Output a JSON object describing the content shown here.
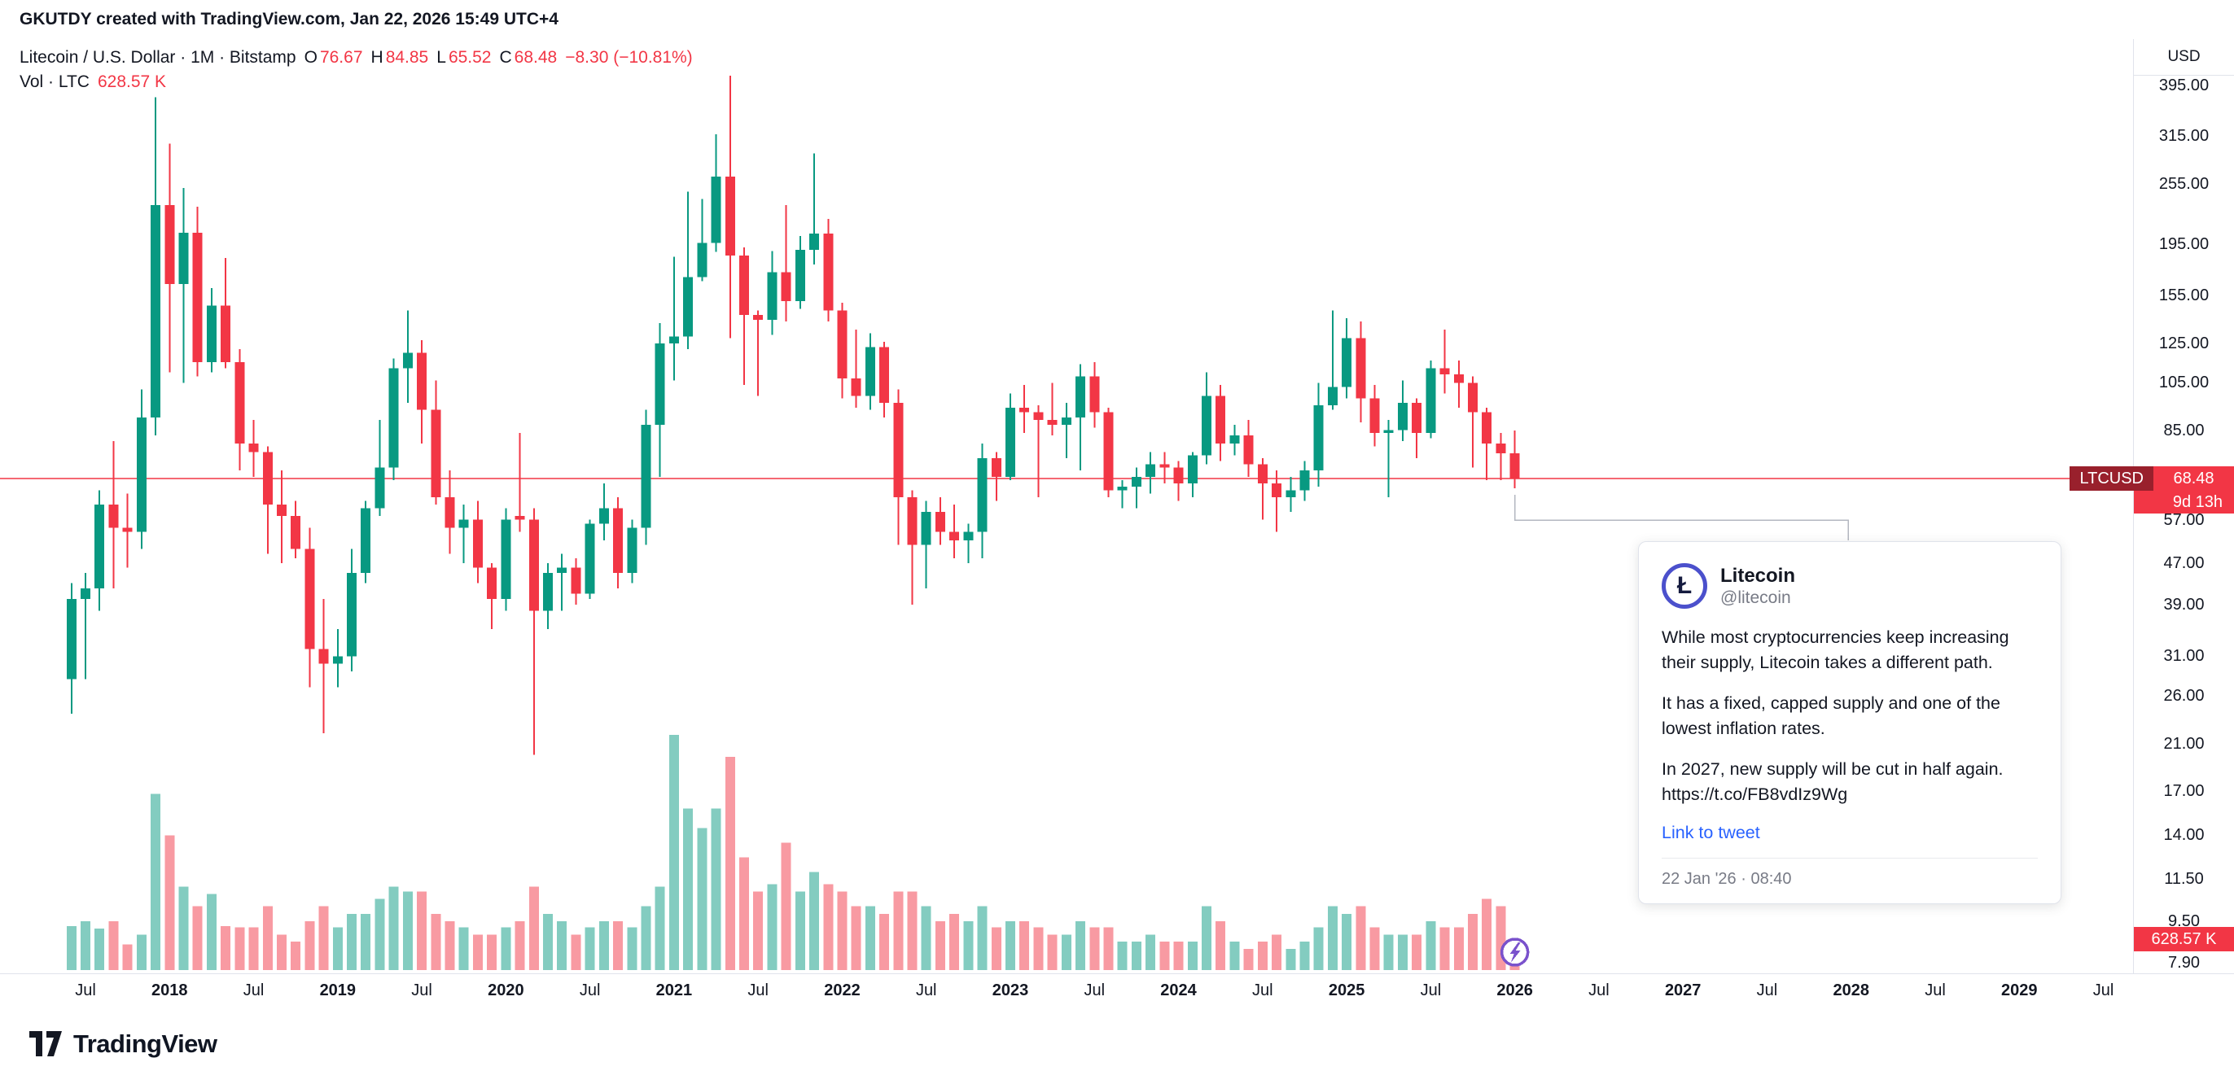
{
  "top_bar": {
    "text": "GKUTDY created with TradingView.com, Jan 22, 2026 15:49 UTC+4"
  },
  "legend": {
    "title": "Litecoin / U.S. Dollar · 1M · Bitstamp",
    "o_label": "O",
    "o": "76.67",
    "h_label": "H",
    "h": "84.85",
    "l_label": "L",
    "l": "65.52",
    "c_label": "C",
    "c": "68.48",
    "change": "−8.30 (−10.81%)",
    "vol_label": "Vol · LTC",
    "vol_value": "628.57 K"
  },
  "price_axis": {
    "currency": "USD",
    "symbol_tag": "LTCUSD",
    "last_price_text": "68.48",
    "countdown": "9d 13h",
    "vol_tag": "628.57 K",
    "ticks": [
      {
        "value": 395,
        "label": "395.00"
      },
      {
        "value": 315,
        "label": "315.00"
      },
      {
        "value": 255,
        "label": "255.00"
      },
      {
        "value": 195,
        "label": "195.00"
      },
      {
        "value": 155,
        "label": "155.00"
      },
      {
        "value": 125,
        "label": "125.00"
      },
      {
        "value": 105,
        "label": "105.00"
      },
      {
        "value": 85,
        "label": "85.00"
      },
      {
        "value": 57,
        "label": "57.00"
      },
      {
        "value": 47,
        "label": "47.00"
      },
      {
        "value": 39,
        "label": "39.00"
      },
      {
        "value": 31,
        "label": "31.00"
      },
      {
        "value": 26,
        "label": "26.00"
      },
      {
        "value": 21,
        "label": "21.00"
      },
      {
        "value": 17,
        "label": "17.00"
      },
      {
        "value": 14,
        "label": "14.00"
      },
      {
        "value": 11.5,
        "label": "11.50"
      },
      {
        "value": 9.5,
        "label": "9.50"
      },
      {
        "value": 7.9,
        "label": "7.90"
      }
    ]
  },
  "time_axis": {
    "ticks": [
      {
        "m": 0,
        "t": "Jul"
      },
      {
        "m": 6,
        "t": "2018",
        "y": true
      },
      {
        "m": 12,
        "t": "Jul"
      },
      {
        "m": 18,
        "t": "2019",
        "y": true
      },
      {
        "m": 24,
        "t": "Jul"
      },
      {
        "m": 30,
        "t": "2020",
        "y": true
      },
      {
        "m": 36,
        "t": "Jul"
      },
      {
        "m": 42,
        "t": "2021",
        "y": true
      },
      {
        "m": 48,
        "t": "Jul"
      },
      {
        "m": 54,
        "t": "2022",
        "y": true
      },
      {
        "m": 60,
        "t": "Jul"
      },
      {
        "m": 66,
        "t": "2023",
        "y": true
      },
      {
        "m": 72,
        "t": "Jul"
      },
      {
        "m": 78,
        "t": "2024",
        "y": true
      },
      {
        "m": 84,
        "t": "Jul"
      },
      {
        "m": 90,
        "t": "2025",
        "y": true
      },
      {
        "m": 96,
        "t": "Jul"
      },
      {
        "m": 102,
        "t": "2026",
        "y": true
      },
      {
        "m": 108,
        "t": "Jul"
      },
      {
        "m": 114,
        "t": "2027",
        "y": true
      },
      {
        "m": 120,
        "t": "Jul"
      },
      {
        "m": 126,
        "t": "2028",
        "y": true
      },
      {
        "m": 132,
        "t": "Jul"
      },
      {
        "m": 138,
        "t": "2029",
        "y": true
      },
      {
        "m": 144,
        "t": "Jul"
      }
    ]
  },
  "tweet_card": {
    "logo_glyph": "Ł",
    "name": "Litecoin",
    "handle": "@litecoin",
    "paragraphs": [
      "While most cryptocurrencies keep increasing their supply, Litecoin takes a different path.",
      "It has a fixed, capped supply and one of the lowest inflation rates.",
      "In 2027, new supply will be cut in half again.\nhttps://t.co/FB8vdIz9Wg"
    ],
    "link_label": "Link to tweet",
    "timestamp": "22 Jan '26 · 08:40"
  },
  "footer": {
    "brand": "TradingView"
  },
  "chart_data": {
    "type": "candlestick+volume",
    "symbol": "LTCUSD",
    "interval": "1M",
    "scale": "log",
    "last_price": 68.48,
    "colors": {
      "up": "#089981",
      "down": "#f23645",
      "vol_up": "rgba(8,153,129,0.5)",
      "vol_down": "rgba(242,54,69,0.5)",
      "last_price_line": "#f23645",
      "marker": "#7a52cc",
      "callout": "#b3b7c0"
    },
    "candles": [
      [
        "2017-06",
        28,
        43,
        24,
        40,
        900
      ],
      [
        "2017-07",
        40,
        45,
        28,
        42,
        1000
      ],
      [
        "2017-08",
        42,
        65,
        38,
        61,
        850
      ],
      [
        "2017-09",
        61,
        81,
        42,
        55,
        1000
      ],
      [
        "2017-10",
        55,
        64,
        46,
        54,
        520
      ],
      [
        "2017-11",
        54,
        102,
        50,
        90,
        720
      ],
      [
        "2017-12",
        90,
        375,
        83,
        232,
        3600
      ],
      [
        "2018-01",
        232,
        305,
        110,
        163,
        2750
      ],
      [
        "2018-02",
        163,
        250,
        105,
        205,
        1700
      ],
      [
        "2018-03",
        205,
        230,
        108,
        115,
        1300
      ],
      [
        "2018-04",
        115,
        160,
        110,
        148,
        1550
      ],
      [
        "2018-05",
        148,
        183,
        112,
        115,
        900
      ],
      [
        "2018-06",
        115,
        122,
        71,
        80,
        870
      ],
      [
        "2018-07",
        80,
        89,
        69,
        77,
        870
      ],
      [
        "2018-08",
        77,
        79,
        49,
        61,
        1300
      ],
      [
        "2018-09",
        61,
        71,
        47,
        58,
        720
      ],
      [
        "2018-10",
        58,
        62,
        48,
        50,
        580
      ],
      [
        "2018-11",
        50,
        55,
        27,
        32,
        1000
      ],
      [
        "2018-12",
        32,
        40,
        22,
        30,
        1300
      ],
      [
        "2019-01",
        30,
        35,
        27,
        31,
        870
      ],
      [
        "2019-02",
        31,
        50,
        29,
        45,
        1150
      ],
      [
        "2019-03",
        45,
        62,
        43,
        60,
        1150
      ],
      [
        "2019-04",
        60,
        89,
        58,
        72,
        1450
      ],
      [
        "2019-05",
        72,
        117,
        68,
        112,
        1700
      ],
      [
        "2019-06",
        112,
        145,
        96,
        120,
        1600
      ],
      [
        "2019-07",
        120,
        127,
        80,
        93,
        1600
      ],
      [
        "2019-08",
        93,
        106,
        61,
        63,
        1150
      ],
      [
        "2019-09",
        63,
        71,
        49,
        55,
        1000
      ],
      [
        "2019-10",
        55,
        61,
        47,
        57,
        870
      ],
      [
        "2019-11",
        57,
        62,
        43,
        46,
        720
      ],
      [
        "2019-12",
        46,
        47,
        35,
        40,
        720
      ],
      [
        "2020-01",
        40,
        60,
        38,
        57,
        870
      ],
      [
        "2020-02",
        58,
        84,
        54,
        57,
        1000
      ],
      [
        "2020-03",
        57,
        60,
        20,
        38,
        1700
      ],
      [
        "2020-04",
        38,
        47,
        35,
        45,
        1150
      ],
      [
        "2020-05",
        45,
        49,
        38,
        46,
        1000
      ],
      [
        "2020-06",
        46,
        48,
        39,
        41,
        720
      ],
      [
        "2020-07",
        41,
        57,
        40,
        56,
        870
      ],
      [
        "2020-08",
        56,
        67,
        52,
        60,
        1000
      ],
      [
        "2020-09",
        60,
        63,
        42,
        45,
        1000
      ],
      [
        "2020-10",
        45,
        57,
        43,
        55,
        870
      ],
      [
        "2020-11",
        55,
        93,
        51,
        87,
        1300
      ],
      [
        "2020-12",
        87,
        137,
        69,
        125,
        1700
      ],
      [
        "2021-01",
        125,
        184,
        106,
        129,
        4800
      ],
      [
        "2021-02",
        129,
        246,
        122,
        168,
        3300
      ],
      [
        "2021-03",
        168,
        238,
        165,
        196,
        2900
      ],
      [
        "2021-04",
        196,
        318,
        188,
        263,
        3300
      ],
      [
        "2021-05",
        263,
        413,
        128,
        185,
        4350
      ],
      [
        "2021-06",
        185,
        192,
        104,
        142,
        2300
      ],
      [
        "2021-07",
        142,
        145,
        99,
        139,
        1600
      ],
      [
        "2021-08",
        139,
        189,
        130,
        172,
        1750
      ],
      [
        "2021-09",
        172,
        232,
        138,
        151,
        2600
      ],
      [
        "2021-10",
        151,
        202,
        146,
        190,
        1600
      ],
      [
        "2021-11",
        190,
        292,
        178,
        204,
        2000
      ],
      [
        "2021-12",
        204,
        218,
        138,
        145,
        1750
      ],
      [
        "2022-01",
        145,
        150,
        98,
        107,
        1600
      ],
      [
        "2022-02",
        107,
        133,
        94,
        99,
        1300
      ],
      [
        "2022-03",
        99,
        131,
        93,
        123,
        1300
      ],
      [
        "2022-04",
        123,
        126,
        90,
        96,
        1150
      ],
      [
        "2022-05",
        96,
        102,
        51,
        63,
        1600
      ],
      [
        "2022-06",
        63,
        65,
        39,
        51,
        1600
      ],
      [
        "2022-07",
        51,
        62,
        42,
        59,
        1300
      ],
      [
        "2022-08",
        59,
        63,
        51,
        54,
        1000
      ],
      [
        "2022-09",
        54,
        61,
        48,
        52,
        1150
      ],
      [
        "2022-10",
        52,
        56,
        47,
        54,
        1000
      ],
      [
        "2022-11",
        54,
        80,
        48,
        75,
        1300
      ],
      [
        "2022-12",
        75,
        77,
        62,
        69,
        870
      ],
      [
        "2023-01",
        69,
        100,
        68,
        94,
        1000
      ],
      [
        "2023-02",
        94,
        104,
        84,
        92,
        1000
      ],
      [
        "2023-03",
        92,
        95,
        63,
        89,
        870
      ],
      [
        "2023-04",
        89,
        105,
        83,
        87,
        720
      ],
      [
        "2023-05",
        87,
        96,
        75,
        90,
        720
      ],
      [
        "2023-06",
        90,
        114,
        71,
        108,
        1000
      ],
      [
        "2023-07",
        108,
        115,
        86,
        92,
        870
      ],
      [
        "2023-08",
        92,
        94,
        63,
        65,
        870
      ],
      [
        "2023-09",
        65,
        68,
        60,
        66,
        580
      ],
      [
        "2023-10",
        66,
        72,
        60,
        69,
        580
      ],
      [
        "2023-11",
        69,
        77,
        64,
        73,
        720
      ],
      [
        "2023-12",
        73,
        77,
        67,
        72,
        580
      ],
      [
        "2024-01",
        72,
        74,
        62,
        67,
        580
      ],
      [
        "2024-02",
        67,
        77,
        63,
        76,
        580
      ],
      [
        "2024-03",
        76,
        110,
        73,
        99,
        1300
      ],
      [
        "2024-04",
        99,
        104,
        74,
        80,
        1000
      ],
      [
        "2024-05",
        80,
        87,
        76,
        83,
        580
      ],
      [
        "2024-06",
        83,
        89,
        69,
        73,
        430
      ],
      [
        "2024-07",
        73,
        75,
        57,
        67,
        580
      ],
      [
        "2024-08",
        67,
        71,
        54,
        63,
        720
      ],
      [
        "2024-09",
        63,
        69,
        59,
        65,
        430
      ],
      [
        "2024-10",
        65,
        74,
        62,
        71,
        580
      ],
      [
        "2024-11",
        71,
        105,
        66,
        95,
        870
      ],
      [
        "2024-12",
        95,
        145,
        93,
        103,
        1300
      ],
      [
        "2025-01",
        103,
        140,
        98,
        128,
        1150
      ],
      [
        "2025-02",
        128,
        138,
        88,
        98,
        1300
      ],
      [
        "2025-03",
        98,
        104,
        79,
        84,
        870
      ],
      [
        "2025-04",
        84,
        89,
        63,
        85,
        720
      ],
      [
        "2025-05",
        85,
        106,
        81,
        96,
        720
      ],
      [
        "2025-06",
        96,
        98,
        75,
        84,
        720
      ],
      [
        "2025-07",
        84,
        116,
        82,
        112,
        1000
      ],
      [
        "2025-08",
        112,
        133,
        100,
        109,
        870
      ],
      [
        "2025-09",
        109,
        116,
        94,
        105,
        870
      ],
      [
        "2025-10",
        105,
        108,
        72,
        92,
        1150
      ],
      [
        "2025-11",
        92,
        94,
        68,
        80,
        1450
      ],
      [
        "2025-12",
        80,
        84,
        68,
        76.67,
        1300
      ],
      [
        "2026-01",
        76.67,
        84.85,
        65.52,
        68.48,
        628.57
      ]
    ]
  }
}
